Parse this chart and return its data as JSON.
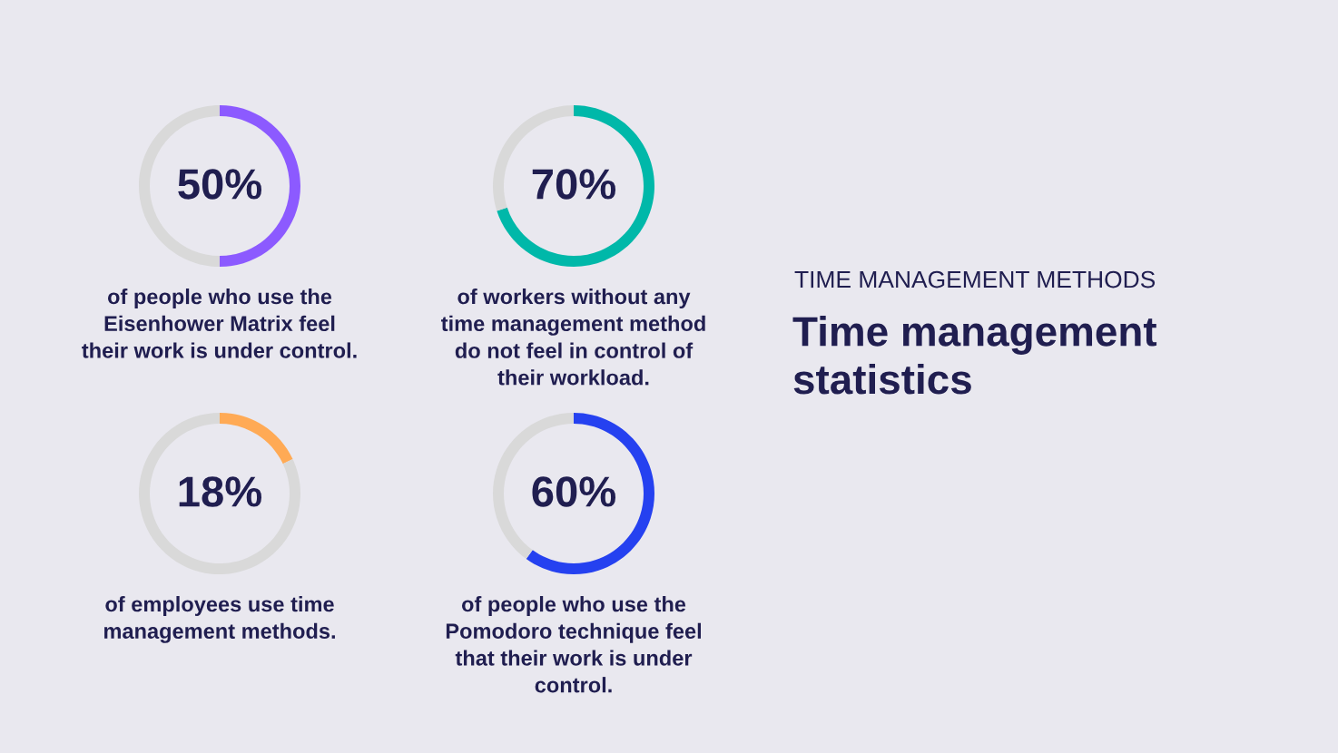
{
  "chart_data": [
    {
      "type": "donut",
      "categories": [
        null,
        null
      ],
      "values": [
        50,
        50
      ],
      "colors": [
        "#8c5aff",
        "#d9d9d9"
      ],
      "value_labels": [
        "50%",
        null
      ],
      "annotations": [
        "of people who use the\nEisenhower Matrix feel\ntheir work is under control."
      ]
    },
    {
      "type": "donut",
      "categories": [
        null,
        null
      ],
      "values": [
        70,
        30
      ],
      "colors": [
        "#00b8a9",
        "#d9d9d9"
      ],
      "value_labels": [
        "70%",
        null
      ],
      "annotations": [
        "of workers without any\ntime management method\ndo not feel in control of\ntheir workload."
      ]
    },
    {
      "type": "donut",
      "categories": [
        null,
        null
      ],
      "values": [
        18,
        82
      ],
      "colors": [
        "#ffaa55",
        "#d9d9d9"
      ],
      "value_labels": [
        "18%",
        null
      ],
      "annotations": [
        "of employees use time\nmanagement methods."
      ]
    },
    {
      "type": "donut",
      "categories": [
        null,
        null
      ],
      "values": [
        60,
        40
      ],
      "colors": [
        "#2541f0",
        "#d9d9d9"
      ],
      "value_labels": [
        "60%",
        null
      ],
      "annotations": [
        "of people who use the\nPomodoro technique feel\nthat their work is under\ncontrol."
      ]
    },
    {
      "type": "other",
      "subtitle": "TIME MANAGEMENT METHODS",
      "title": "Time management\nstatistics"
    }
  ]
}
